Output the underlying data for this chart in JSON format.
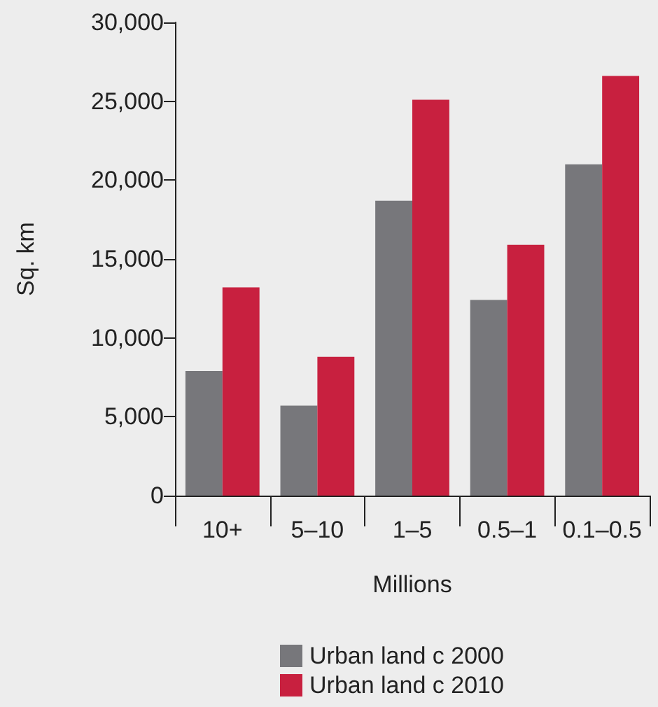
{
  "chart_data": {
    "type": "bar",
    "xlabel": "Millions",
    "ylabel": "Sq. km",
    "categories": [
      "10+",
      "5–10",
      "1–5",
      "0.5–1",
      "0.1–0.5"
    ],
    "series": [
      {
        "name": "Urban land c 2000",
        "color": "#77777b",
        "values": [
          7900,
          5700,
          18700,
          12400,
          21000
        ]
      },
      {
        "name": "Urban land c 2010",
        "color": "#c8203f",
        "values": [
          13200,
          8800,
          25100,
          15900,
          26600
        ]
      }
    ],
    "ylim": [
      0,
      30000
    ],
    "yticks": [
      0,
      {
        "value": 5000,
        "label": "5,000"
      },
      {
        "value": 10000,
        "label": "10,000"
      },
      {
        "value": 15000,
        "label": "15,000"
      },
      {
        "value": 20000,
        "label": "20,000"
      },
      {
        "value": 25000,
        "label": "25,000"
      },
      {
        "value": 30000,
        "label": "30,000"
      }
    ],
    "grid": false,
    "legend": "bottom"
  }
}
